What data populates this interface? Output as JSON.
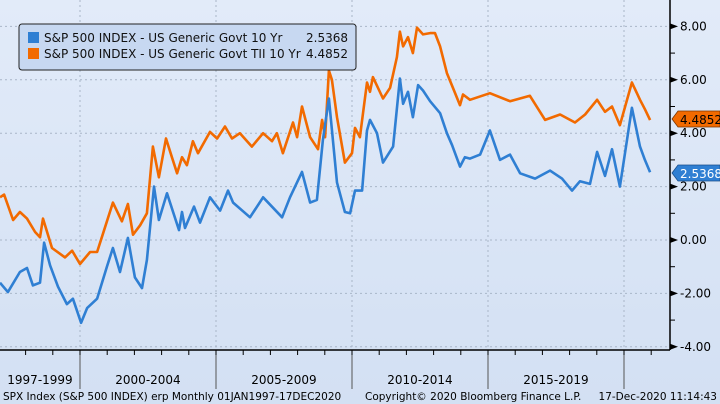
{
  "chart_data": {
    "type": "line",
    "title": "",
    "xlabel": "",
    "ylabel": "",
    "xlim": [
      1997.0,
      2021.7
    ],
    "ylim": [
      -4.4,
      9.0
    ],
    "yticks": [
      8,
      6,
      4,
      2,
      0,
      -2,
      -4
    ],
    "ytick_labels": [
      "8.00",
      "6.00",
      "4.00",
      "2.00",
      "0.00",
      "-2.00",
      "-4.00"
    ],
    "x_period_labels": [
      {
        "label": "1997-1999",
        "start": 1997,
        "end": 2000
      },
      {
        "label": "2000-2004",
        "start": 2000,
        "end": 2005
      },
      {
        "label": "2005-2009",
        "start": 2005,
        "end": 2010
      },
      {
        "label": "2010-2014",
        "start": 2010,
        "end": 2015
      },
      {
        "label": "2015-2019",
        "start": 2015,
        "end": 2020
      }
    ],
    "grid": true,
    "legend_position": "top-left",
    "series": [
      {
        "name": "S&P 500 INDEX - US Generic Govt 10 Yr",
        "last_value": "2.5368",
        "color": "#2f7fd3",
        "points": [
          [
            1997.06,
            -1.6
          ],
          [
            1997.35,
            -1.95
          ],
          [
            1997.79,
            -1.2
          ],
          [
            1998.05,
            -1.05
          ],
          [
            1998.27,
            -1.7
          ],
          [
            1998.53,
            -1.6
          ],
          [
            1998.68,
            -0.1
          ],
          [
            1998.9,
            -0.95
          ],
          [
            1999.19,
            -1.75
          ],
          [
            1999.52,
            -2.4
          ],
          [
            1999.74,
            -2.2
          ],
          [
            2000.04,
            -3.1
          ],
          [
            2000.26,
            -2.55
          ],
          [
            2000.63,
            -2.2
          ],
          [
            2000.99,
            -1.0
          ],
          [
            2001.21,
            -0.3
          ],
          [
            2001.47,
            -1.2
          ],
          [
            2001.76,
            0.08
          ],
          [
            2002.02,
            -1.4
          ],
          [
            2002.28,
            -1.8
          ],
          [
            2002.46,
            -0.75
          ],
          [
            2002.72,
            2.0
          ],
          [
            2002.9,
            0.75
          ],
          [
            2003.2,
            1.75
          ],
          [
            2003.64,
            0.37
          ],
          [
            2003.75,
            1.05
          ],
          [
            2003.86,
            0.45
          ],
          [
            2004.19,
            1.25
          ],
          [
            2004.41,
            0.65
          ],
          [
            2004.78,
            1.6
          ],
          [
            2005.15,
            1.1
          ],
          [
            2005.44,
            1.85
          ],
          [
            2005.63,
            1.4
          ],
          [
            2006.25,
            0.85
          ],
          [
            2006.73,
            1.6
          ],
          [
            2007.43,
            0.85
          ],
          [
            2007.72,
            1.6
          ],
          [
            2008.16,
            2.55
          ],
          [
            2008.46,
            1.4
          ],
          [
            2008.71,
            1.5
          ],
          [
            2008.93,
            3.75
          ],
          [
            2009.15,
            5.3
          ],
          [
            2009.45,
            2.15
          ],
          [
            2009.74,
            1.05
          ],
          [
            2009.93,
            1.0
          ],
          [
            2010.11,
            1.85
          ],
          [
            2010.37,
            1.85
          ],
          [
            2010.55,
            4.1
          ],
          [
            2010.66,
            4.5
          ],
          [
            2010.92,
            4.0
          ],
          [
            2011.14,
            2.9
          ],
          [
            2011.51,
            3.5
          ],
          [
            2011.76,
            6.05
          ],
          [
            2011.88,
            5.1
          ],
          [
            2012.06,
            5.55
          ],
          [
            2012.24,
            4.6
          ],
          [
            2012.43,
            5.8
          ],
          [
            2012.61,
            5.6
          ],
          [
            2012.87,
            5.2
          ],
          [
            2013.24,
            4.75
          ],
          [
            2013.49,
            4.0
          ],
          [
            2013.68,
            3.55
          ],
          [
            2013.97,
            2.75
          ],
          [
            2014.15,
            3.1
          ],
          [
            2014.34,
            3.05
          ],
          [
            2014.71,
            3.2
          ],
          [
            2015.07,
            4.1
          ],
          [
            2015.44,
            3.0
          ],
          [
            2015.81,
            3.2
          ],
          [
            2016.18,
            2.5
          ],
          [
            2016.73,
            2.3
          ],
          [
            2017.28,
            2.6
          ],
          [
            2017.72,
            2.3
          ],
          [
            2018.09,
            1.85
          ],
          [
            2018.38,
            2.2
          ],
          [
            2018.75,
            2.1
          ],
          [
            2019.01,
            3.3
          ],
          [
            2019.3,
            2.4
          ],
          [
            2019.56,
            3.4
          ],
          [
            2019.85,
            2.0
          ],
          [
            2020.29,
            4.95
          ],
          [
            2020.59,
            3.5
          ],
          [
            2020.77,
            3.0
          ],
          [
            2020.96,
            2.54
          ]
        ]
      },
      {
        "name": "S&P 500 INDEX - US Generic Govt TII 10 Yr",
        "last_value": "4.4852",
        "color": "#f26a00",
        "points": [
          [
            1997.06,
            1.6
          ],
          [
            1997.21,
            1.7
          ],
          [
            1997.54,
            0.75
          ],
          [
            1997.79,
            1.05
          ],
          [
            1998.05,
            0.8
          ],
          [
            1998.35,
            0.3
          ],
          [
            1998.53,
            0.1
          ],
          [
            1998.64,
            0.8
          ],
          [
            1998.97,
            -0.3
          ],
          [
            1999.45,
            -0.65
          ],
          [
            1999.71,
            -0.4
          ],
          [
            2000.0,
            -0.9
          ],
          [
            2000.37,
            -0.45
          ],
          [
            2000.63,
            -0.45
          ],
          [
            2000.85,
            0.25
          ],
          [
            2001.21,
            1.4
          ],
          [
            2001.54,
            0.7
          ],
          [
            2001.76,
            1.35
          ],
          [
            2001.95,
            0.2
          ],
          [
            2002.21,
            0.55
          ],
          [
            2002.46,
            1.0
          ],
          [
            2002.68,
            3.5
          ],
          [
            2002.9,
            2.35
          ],
          [
            2003.16,
            3.8
          ],
          [
            2003.38,
            3.1
          ],
          [
            2003.57,
            2.5
          ],
          [
            2003.75,
            3.1
          ],
          [
            2003.93,
            2.8
          ],
          [
            2004.15,
            3.7
          ],
          [
            2004.34,
            3.25
          ],
          [
            2004.78,
            4.05
          ],
          [
            2005.04,
            3.8
          ],
          [
            2005.33,
            4.25
          ],
          [
            2005.59,
            3.8
          ],
          [
            2005.88,
            4.0
          ],
          [
            2006.32,
            3.5
          ],
          [
            2006.73,
            4.0
          ],
          [
            2007.06,
            3.7
          ],
          [
            2007.24,
            4.0
          ],
          [
            2007.46,
            3.25
          ],
          [
            2007.83,
            4.4
          ],
          [
            2007.98,
            3.85
          ],
          [
            2008.16,
            5.0
          ],
          [
            2008.46,
            3.85
          ],
          [
            2008.75,
            3.4
          ],
          [
            2008.9,
            4.5
          ],
          [
            2009.01,
            3.85
          ],
          [
            2009.15,
            6.35
          ],
          [
            2009.26,
            6.0
          ],
          [
            2009.45,
            4.6
          ],
          [
            2009.74,
            2.9
          ],
          [
            2010.0,
            3.25
          ],
          [
            2010.11,
            4.2
          ],
          [
            2010.29,
            3.85
          ],
          [
            2010.55,
            5.9
          ],
          [
            2010.66,
            5.55
          ],
          [
            2010.77,
            6.1
          ],
          [
            2011.14,
            5.3
          ],
          [
            2011.4,
            5.7
          ],
          [
            2011.65,
            6.85
          ],
          [
            2011.76,
            7.8
          ],
          [
            2011.88,
            7.25
          ],
          [
            2012.06,
            7.6
          ],
          [
            2012.24,
            7.0
          ],
          [
            2012.39,
            7.95
          ],
          [
            2012.61,
            7.7
          ],
          [
            2012.87,
            7.75
          ],
          [
            2013.05,
            7.75
          ],
          [
            2013.24,
            7.25
          ],
          [
            2013.49,
            6.25
          ],
          [
            2013.71,
            5.7
          ],
          [
            2013.97,
            5.05
          ],
          [
            2014.08,
            5.45
          ],
          [
            2014.34,
            5.25
          ],
          [
            2015.07,
            5.5
          ],
          [
            2015.81,
            5.2
          ],
          [
            2016.54,
            5.4
          ],
          [
            2017.1,
            4.5
          ],
          [
            2017.65,
            4.7
          ],
          [
            2018.2,
            4.4
          ],
          [
            2018.57,
            4.7
          ],
          [
            2019.01,
            5.25
          ],
          [
            2019.3,
            4.8
          ],
          [
            2019.56,
            5.0
          ],
          [
            2019.85,
            4.3
          ],
          [
            2020.29,
            5.9
          ],
          [
            2020.59,
            5.25
          ],
          [
            2020.77,
            4.9
          ],
          [
            2020.96,
            4.49
          ]
        ]
      }
    ]
  },
  "footer": {
    "security": "SPX Index (S&P 500 INDEX) erp  Monthly 01JAN1997-17DEC2020",
    "copyright": "Copyright© 2020 Bloomberg Finance L.P.",
    "timestamp": "17-Dec-2020 11:14:43"
  }
}
